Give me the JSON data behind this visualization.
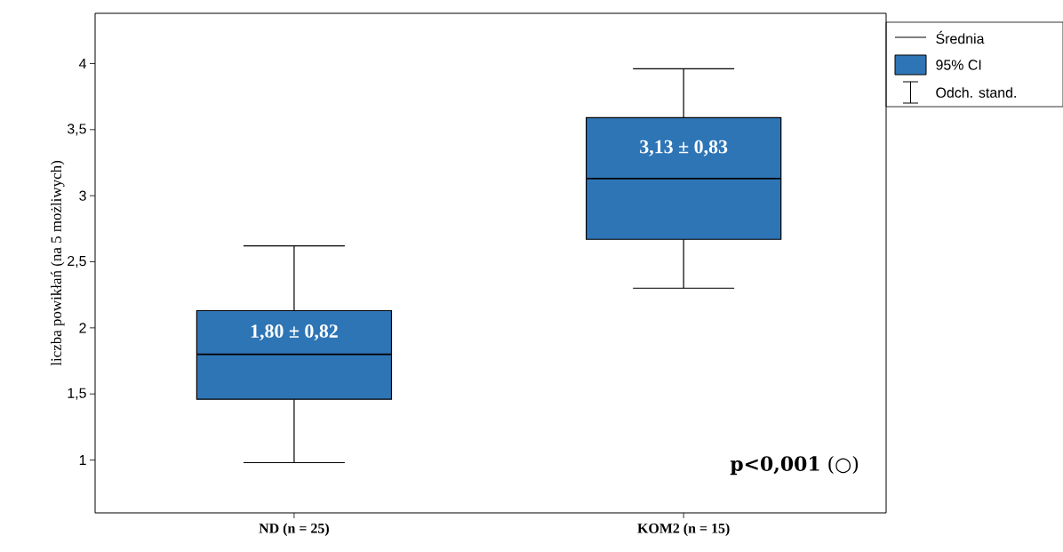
{
  "chart_data": {
    "type": "box",
    "ylabel": "liczba powikłań (na 5 możliwych)",
    "categories": [
      "ND (n = 25)",
      "KOM2 (n = 15)"
    ],
    "boxes": [
      {
        "low": 0.98,
        "q1": 1.46,
        "median": 1.8,
        "q3": 2.13,
        "high": 2.62
      },
      {
        "low": 2.3,
        "q1": 2.67,
        "median": 3.13,
        "q3": 3.59,
        "high": 3.96
      }
    ],
    "color": "#2e75b6",
    "ylim": [
      0.6,
      4.38
    ],
    "yticks": [
      1,
      {
        "value": 1.5,
        "label": "1,5"
      },
      2,
      {
        "value": 2.5,
        "label": "2,5"
      },
      3,
      {
        "value": 3.5,
        "label": "3,5"
      },
      4
    ],
    "grid": false,
    "annotations": [
      "Średnia",
      "95% CI",
      "Odch. stand.",
      "1,80 ± 0,82",
      "3,13 ± 0,83",
      "**p<0,001** (○)"
    ]
  }
}
